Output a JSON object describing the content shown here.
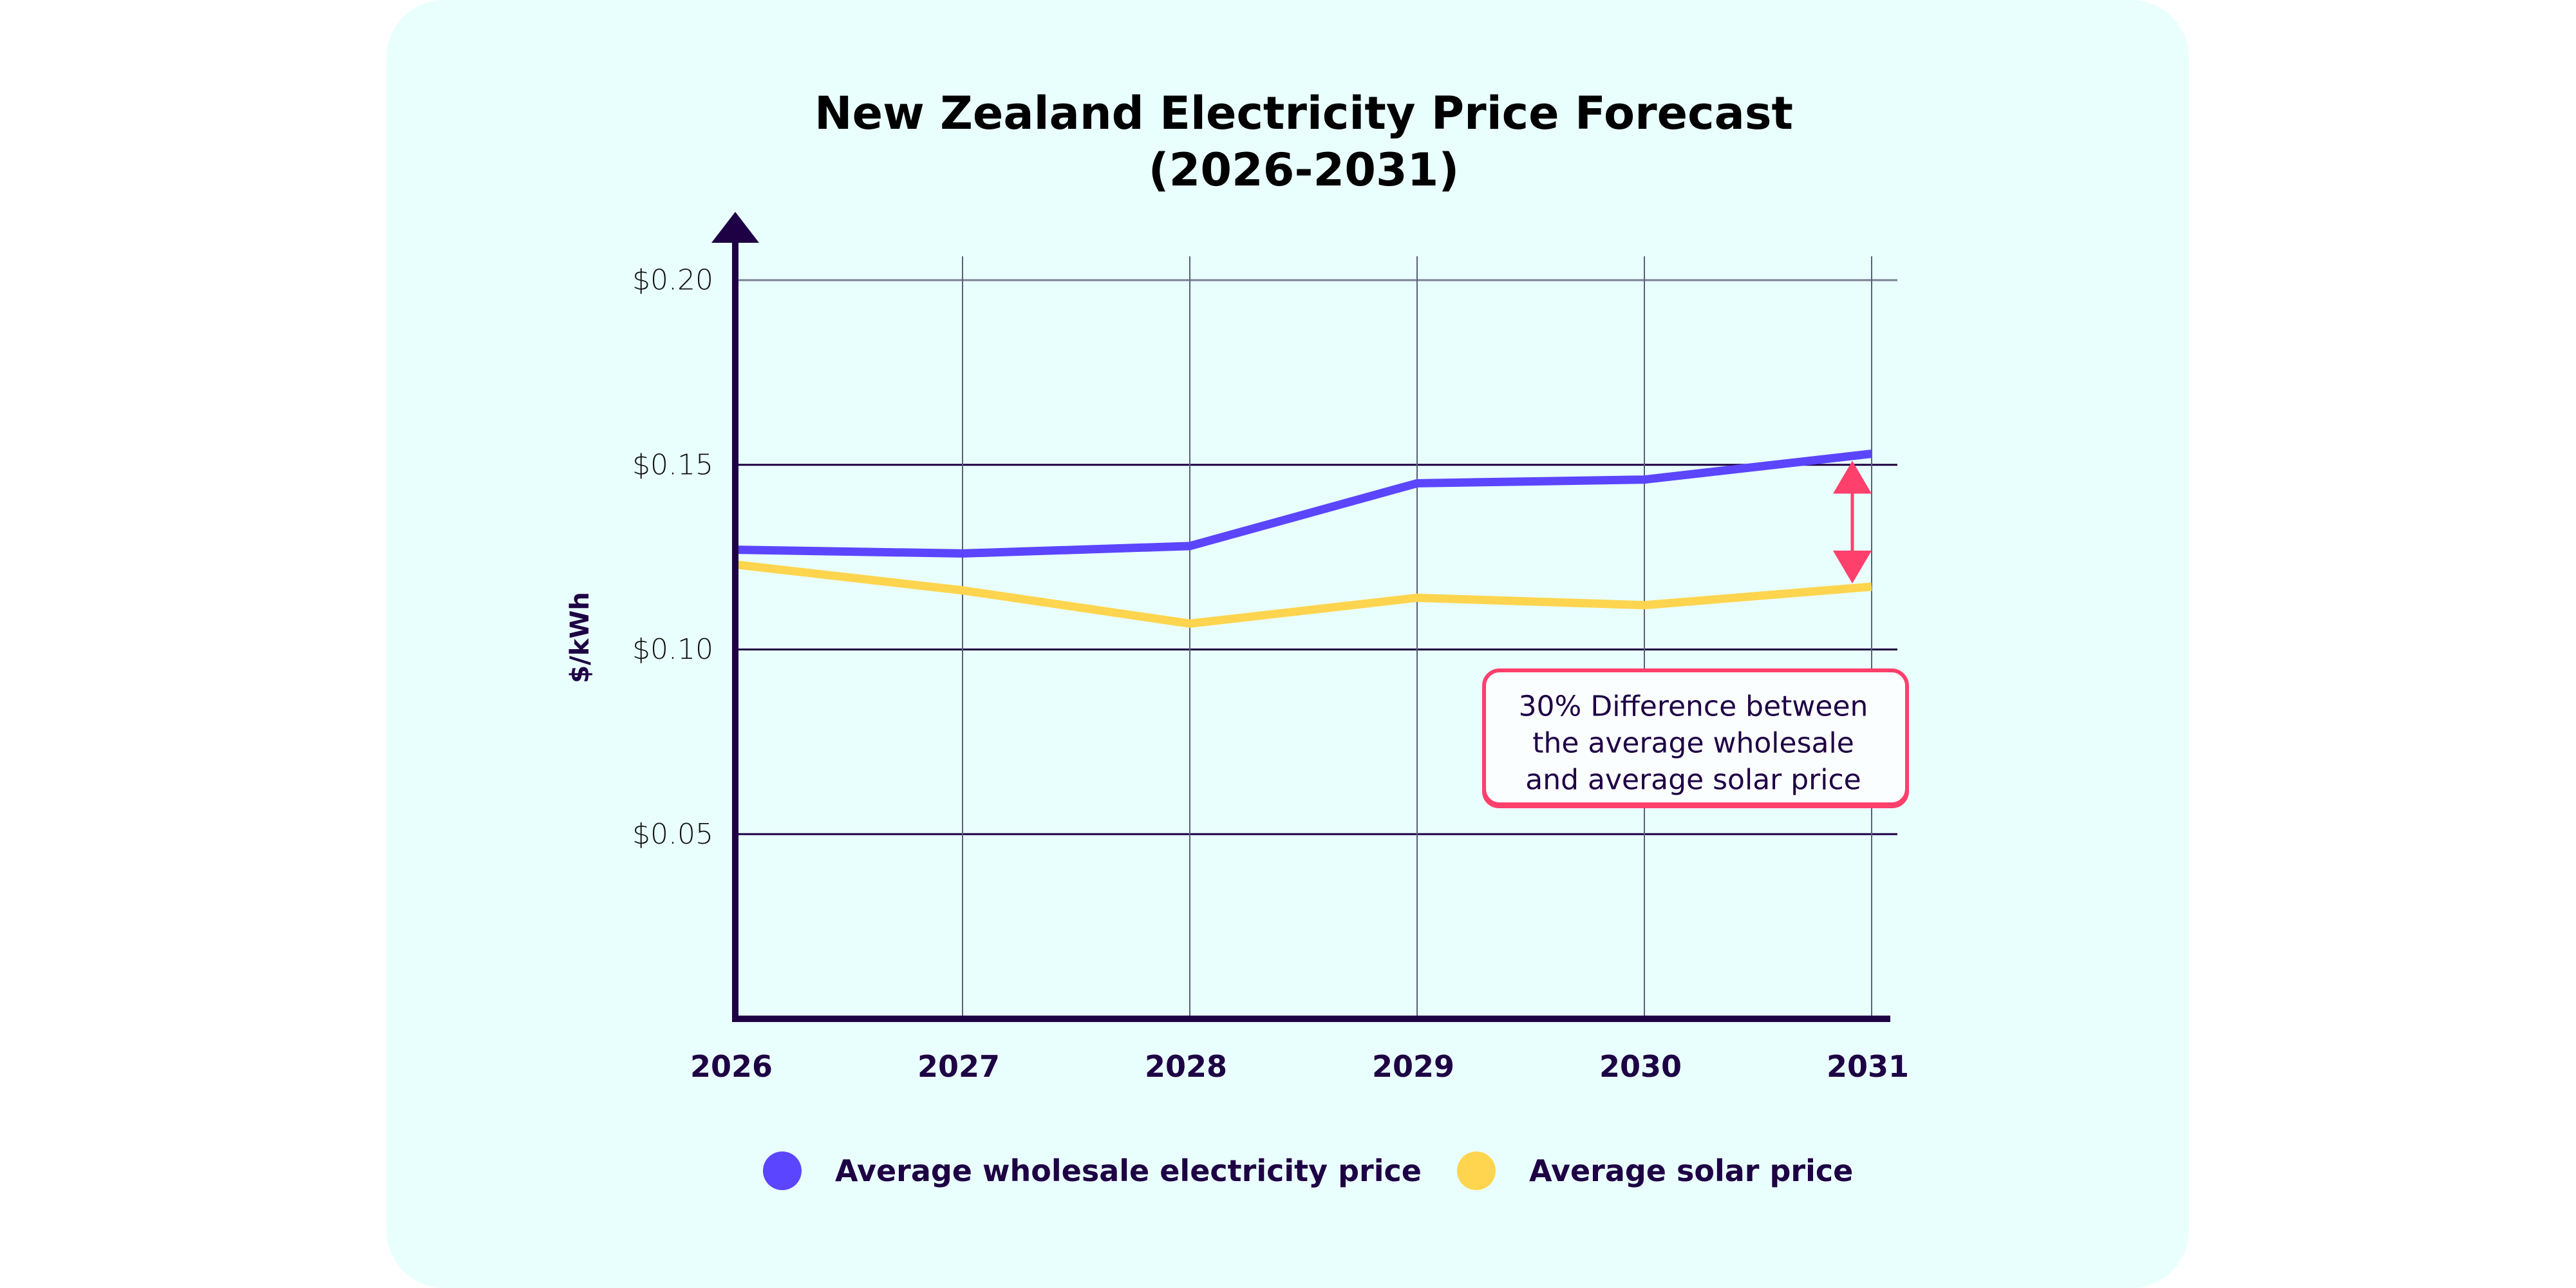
{
  "colors": {
    "background": "#ffffff",
    "card": "#e9fffd",
    "axis": "#1e0044",
    "grid": "#5a5f78",
    "wholesale": "#5b45ff",
    "solar": "#ffd54f",
    "annotation": "#ff3f6c",
    "annotation_fill": "#fbfeff"
  },
  "chart_data": {
    "type": "line",
    "title": "New Zealand Electricity Price Forecast",
    "subtitle": "(2026-2031)",
    "xlabel": "",
    "ylabel": "$/kWh",
    "x": [
      "2026",
      "2027",
      "2028",
      "2029",
      "2030",
      "2031"
    ],
    "ylim": [
      0,
      0.2
    ],
    "yticks": [
      0.05,
      0.1,
      0.15,
      0.2
    ],
    "ytick_labels": [
      "$0.05",
      "$0.10",
      "$0.15",
      "$0.20"
    ],
    "grid": true,
    "legend_position": "bottom-center",
    "series": [
      {
        "name": "Average wholesale electricity price",
        "color": "#5b45ff",
        "values": [
          0.127,
          0.126,
          0.128,
          0.145,
          0.146,
          0.153
        ]
      },
      {
        "name": "Average solar price",
        "color": "#ffd54f",
        "values": [
          0.123,
          0.116,
          0.107,
          0.114,
          0.112,
          0.117
        ]
      }
    ],
    "annotation": {
      "lines": [
        "30% Difference between",
        "the average wholesale",
        "and average solar price"
      ],
      "x": "2031",
      "from_series": "Average wholesale electricity price",
      "to_series": "Average solar price",
      "arrow": "double-headed"
    }
  }
}
